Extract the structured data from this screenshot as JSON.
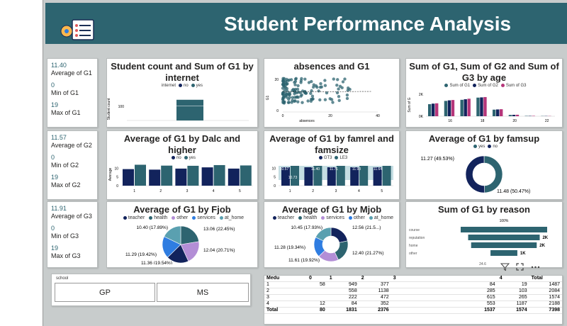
{
  "header": {
    "title": "Student Performance Analysis"
  },
  "kpis": [
    {
      "avg_val": "11.40",
      "avg_label": "Average of G1",
      "min_val": "0",
      "min_label": "Min of G1",
      "max_val": "19",
      "max_label": "Max of G1"
    },
    {
      "avg_val": "11.57",
      "avg_label": "Average of G2",
      "min_val": "0",
      "min_label": "Min of G2",
      "max_val": "19",
      "max_label": "Max of G2"
    },
    {
      "avg_val": "11.91",
      "avg_label": "Average of G3",
      "min_val": "0",
      "min_label": "Min of G3",
      "max_val": "19",
      "max_label": "Max of G3"
    }
  ],
  "colors": {
    "teal": "#2d6470",
    "navy": "#12235c",
    "light_teal": "#5aa0b0",
    "purple": "#b38ed6",
    "blue": "#2f7de1",
    "magenta": "#b5367a"
  },
  "chart_data": [
    {
      "id": "internet",
      "type": "bar",
      "title": "Student count and Sum of G1 by internet",
      "legend_title": "internet",
      "categories": [
        "no",
        "yes"
      ],
      "ylabel": "Student count",
      "yticks": [
        "100"
      ],
      "series": [
        {
          "name": "yes",
          "values": [
            0,
            100
          ]
        }
      ]
    },
    {
      "id": "absences",
      "type": "scatter",
      "title": "absences and G1",
      "xlabel": "absences",
      "ylabel": "G1",
      "xticks": [
        "0",
        "20",
        "40"
      ],
      "yticks": [
        "0",
        "20"
      ]
    },
    {
      "id": "age",
      "type": "bar",
      "title": "Sum of G1, Sum of G2 and Sum of G3 by age",
      "legend": [
        "Sum of G1",
        "Sum of G2",
        "Sum of G3"
      ],
      "ylabel": "Sum of G",
      "yticks": [
        "2K",
        "0K"
      ],
      "xticks": [
        "16",
        "18",
        "20",
        "22"
      ],
      "categories": [
        "15",
        "16",
        "17",
        "18",
        "19",
        "20",
        "21",
        "22"
      ],
      "series": [
        {
          "name": "Sum of G1",
          "values": [
            1100,
            1400,
            1500,
            1700,
            600,
            120,
            30,
            20
          ]
        },
        {
          "name": "Sum of G2",
          "values": [
            1150,
            1450,
            1550,
            1720,
            620,
            130,
            30,
            20
          ]
        },
        {
          "name": "Sum of G3",
          "values": [
            1180,
            1480,
            1600,
            1750,
            640,
            135,
            35,
            20
          ]
        }
      ]
    },
    {
      "id": "dalc",
      "type": "bar",
      "title": "Average of G1 by Dalc and higher",
      "legend": [
        "no",
        "yes"
      ],
      "ylabel": "Average",
      "yticks": [
        "10",
        "5",
        "0"
      ],
      "categories": [
        "1",
        "2",
        "3",
        "4",
        "5"
      ],
      "series": [
        {
          "name": "no",
          "values": [
            9.5,
            9.2,
            9.8,
            10.5,
            9.8
          ]
        },
        {
          "name": "yes",
          "values": [
            12.0,
            11.5,
            11.4,
            11.8,
            11.6
          ]
        }
      ]
    },
    {
      "id": "famrel",
      "type": "bar",
      "title": "Average of G1 by famrel and famsize",
      "legend": [
        "GT3",
        "LE3"
      ],
      "yticks": [
        "10",
        "5",
        "0"
      ],
      "categories": [
        "1",
        "2",
        "3",
        "4",
        "5"
      ],
      "data_labels": [
        "10.57",
        "10.73",
        "11.40",
        "11.71",
        "11.93",
        "11.64"
      ]
    },
    {
      "id": "famsup",
      "type": "pie",
      "title": "Average of G1 by famsup",
      "legend": [
        "yes",
        "no"
      ],
      "values": [
        11.27,
        11.48
      ],
      "labels": [
        "11.27 (49.53%)",
        "11.48 (50.47%)"
      ]
    },
    {
      "id": "fjob",
      "type": "pie",
      "title": "Average of G1 by Fjob",
      "legend": [
        "teacher",
        "health",
        "other",
        "services",
        "at_home"
      ],
      "values": [
        13.06,
        12.04,
        11.36,
        11.29,
        10.4
      ],
      "labels": [
        "13.06 (22.45%)",
        "12.04 (20.71%)",
        "11.36 (19.54%)",
        "11.29 (19.42%)",
        "10.40 (17.89%)"
      ]
    },
    {
      "id": "mjob",
      "type": "pie",
      "title": "Average of G1 by Mjob",
      "legend": [
        "teacher",
        "health",
        "services",
        "other",
        "at_home"
      ],
      "values": [
        12.56,
        12.4,
        11.61,
        11.28,
        10.45
      ],
      "labels": [
        "12.56 (21.5...)",
        "12.40 (21.27%)",
        "11.61 (19.92%)",
        "11.28 (19.34%)",
        "10.45 (17.93%)"
      ]
    },
    {
      "id": "reason",
      "type": "bar",
      "title": "Sum of G1 by reason",
      "categories": [
        "course",
        "reputation",
        "home",
        "other"
      ],
      "values": [
        2900,
        2400,
        2200,
        900
      ],
      "data_labels": [
        "",
        "2K",
        "2K",
        "1K"
      ],
      "top_label": "100%",
      "bottom_label": "24.6"
    }
  ],
  "slicer": {
    "title": "school",
    "options": [
      "GP",
      "MS"
    ]
  },
  "matrix": {
    "headers": [
      "Medu",
      "0",
      "1",
      "2",
      "3",
      "4",
      "Total"
    ],
    "rows": [
      [
        "1",
        "58",
        "949",
        "377",
        "84",
        "19",
        "1487"
      ],
      [
        "2",
        "",
        "558",
        "1138",
        "285",
        "103",
        "2084"
      ],
      [
        "3",
        "",
        "222",
        "472",
        "615",
        "265",
        "1574"
      ],
      [
        "4",
        "12",
        "84",
        "352",
        "553",
        "1187",
        "2188"
      ]
    ],
    "total": [
      "Total",
      "80",
      "1831",
      "2376",
      "1537",
      "1574",
      "7398"
    ]
  },
  "toolbar": {
    "filter_icon": "funnel-icon",
    "focus_icon": "expand-icon",
    "more_icon": "more-options-icon"
  }
}
